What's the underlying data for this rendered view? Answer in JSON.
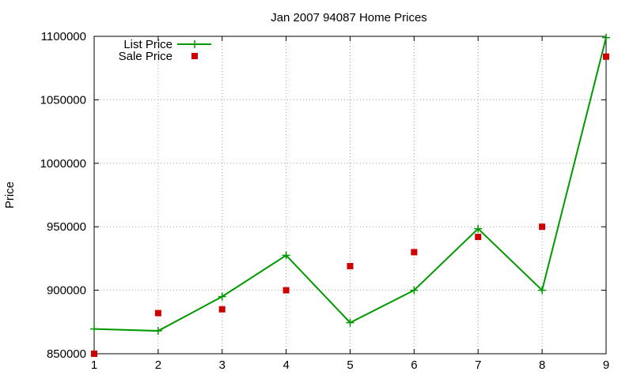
{
  "chart_data": {
    "type": "line",
    "title": "Jan 2007 94087 Home Prices",
    "xlabel": "",
    "ylabel": "Price",
    "x": [
      1,
      2,
      3,
      4,
      5,
      6,
      7,
      8,
      9
    ],
    "xlim": [
      1,
      9
    ],
    "ylim": [
      850000,
      1100000
    ],
    "xticks": [
      "1",
      "2",
      "3",
      "4",
      "5",
      "6",
      "7",
      "8",
      "9"
    ],
    "yticks": [
      "850000",
      "900000",
      "950000",
      "1000000",
      "1050000",
      "1100000"
    ],
    "grid": true,
    "legend_position": "top-left",
    "series": [
      {
        "name": "List Price",
        "style": "line-with-plus-markers",
        "color": "#009900",
        "values": [
          869500,
          868000,
          895000,
          927500,
          874500,
          900000,
          948500,
          900000,
          1099000
        ]
      },
      {
        "name": "Sale Price",
        "style": "square-markers",
        "color": "#cc0000",
        "values": [
          850000,
          882000,
          885000,
          900000,
          919000,
          930000,
          942000,
          950000,
          1084000
        ]
      }
    ]
  }
}
